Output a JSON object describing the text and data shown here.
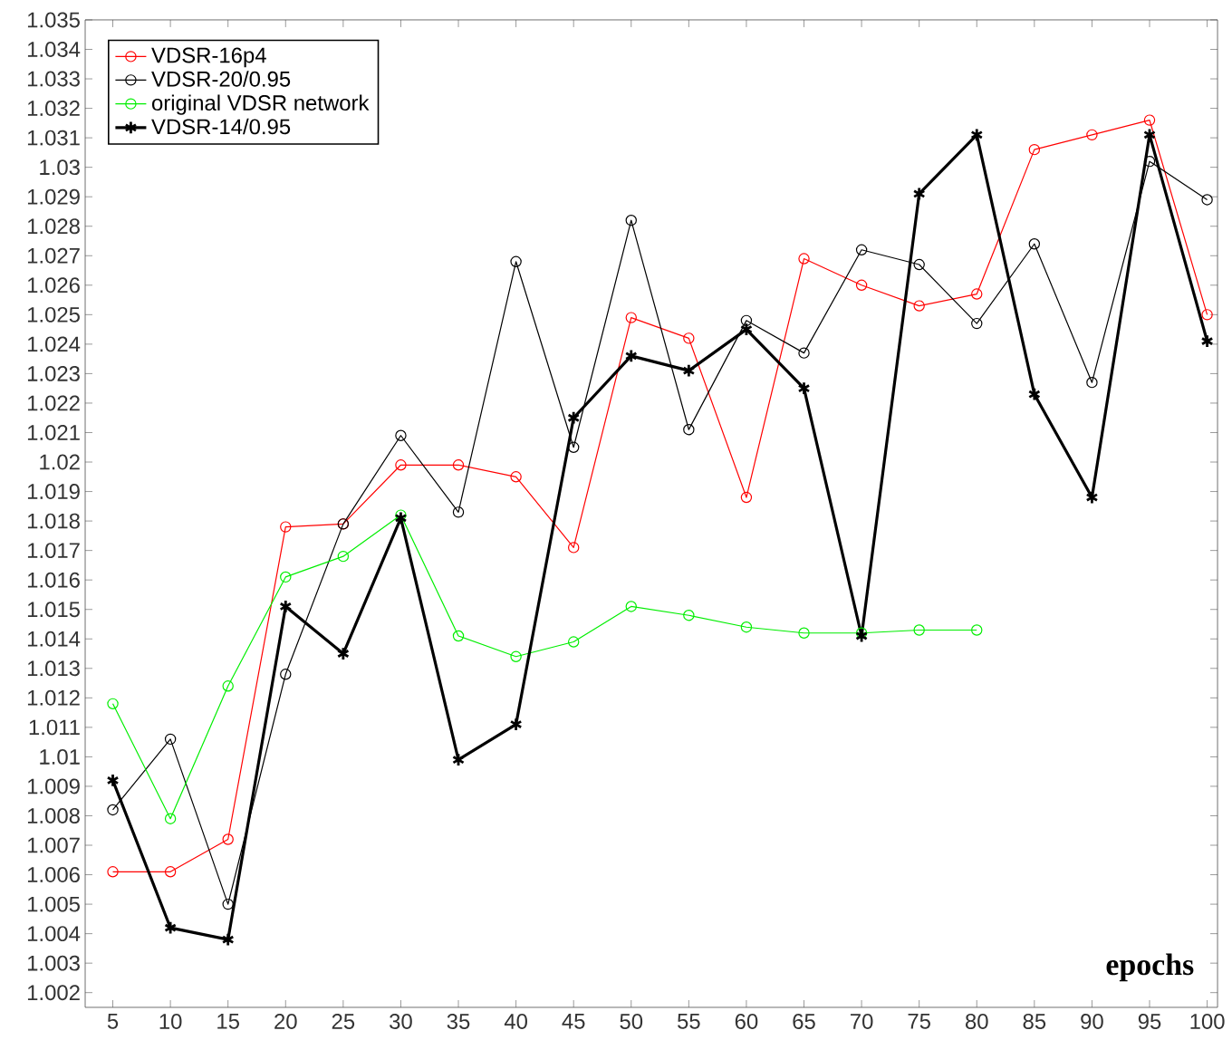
{
  "chart_data": {
    "type": "line",
    "xlabel": "epochs",
    "x": [
      5,
      10,
      15,
      20,
      25,
      30,
      35,
      40,
      45,
      50,
      55,
      60,
      65,
      70,
      75,
      80,
      85,
      90,
      95,
      100
    ],
    "series": [
      {
        "name": "VDSR-16p4",
        "color": "#ff0000",
        "marker": "circle",
        "values": [
          1.0061,
          1.0061,
          1.0072,
          1.0178,
          1.0179,
          1.0199,
          1.0199,
          1.0195,
          1.0171,
          1.0249,
          1.0242,
          1.0188,
          1.0269,
          1.026,
          1.0253,
          1.0257,
          1.0306,
          1.0311,
          1.0316,
          1.025
        ]
      },
      {
        "name": "VDSR-20/0.95",
        "color": "#000000",
        "marker": "circle",
        "values": [
          1.0082,
          1.0106,
          1.005,
          1.0128,
          1.0179,
          1.0209,
          1.0183,
          1.0268,
          1.0205,
          1.0282,
          1.0211,
          1.0248,
          1.0237,
          1.0272,
          1.0267,
          1.0247,
          1.0274,
          1.0227,
          1.0302,
          1.0289
        ]
      },
      {
        "name": "original VDSR network",
        "color": "#00ee00",
        "marker": "circle",
        "values": [
          1.0118,
          1.0079,
          1.0124,
          1.0161,
          1.0168,
          1.0182,
          1.0141,
          1.0134,
          1.0139,
          1.0151,
          1.0148,
          1.0144,
          1.0142,
          1.0142,
          1.0143,
          1.0143,
          null,
          null,
          null,
          null
        ]
      },
      {
        "name": "VDSR-14/0.95",
        "color": "#000000",
        "marker": "cross",
        "values": [
          1.0092,
          1.0042,
          1.0038,
          1.0151,
          1.0135,
          1.0181,
          1.0099,
          1.0111,
          1.0215,
          1.0236,
          1.0231,
          1.0245,
          1.0225,
          1.0141,
          1.0291,
          1.0311,
          1.0223,
          1.0188,
          1.0311,
          1.0241
        ]
      }
    ],
    "xlim": [
      2.6,
      100.9
    ],
    "ylim": [
      1.0015,
      1.035
    ],
    "xticks": [
      5,
      10,
      15,
      20,
      25,
      30,
      35,
      40,
      45,
      50,
      55,
      60,
      65,
      70,
      75,
      80,
      85,
      90,
      95,
      100
    ],
    "yticks": [
      1.002,
      1.003,
      1.004,
      1.005,
      1.006,
      1.007,
      1.008,
      1.009,
      1.01,
      1.011,
      1.012,
      1.013,
      1.014,
      1.015,
      1.016,
      1.017,
      1.018,
      1.019,
      1.02,
      1.021,
      1.022,
      1.023,
      1.024,
      1.025,
      1.026,
      1.027,
      1.028,
      1.029,
      1.03,
      1.031,
      1.032,
      1.033,
      1.034,
      1.035
    ],
    "grid": false,
    "legend": "top left",
    "line_style": "solid"
  }
}
